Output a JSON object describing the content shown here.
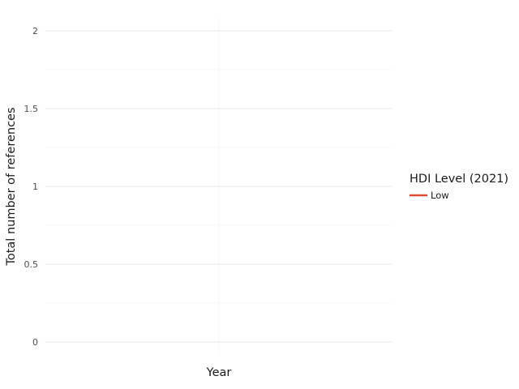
{
  "chart_data": {
    "type": "line",
    "xlabel": "Year",
    "ylabel": "Total number of references",
    "ylim": [
      0,
      2
    ],
    "y_ticks": [
      0,
      0.5,
      1,
      1.5,
      2
    ],
    "y_tick_labels": [
      "0",
      "0.5",
      "1",
      "1.5",
      "2"
    ],
    "x_ticks": [],
    "grid": true,
    "legend": {
      "title": "HDI Level (2021)",
      "placement": "right",
      "entries": [
        {
          "label": "Low",
          "color": "#e24a33"
        }
      ]
    },
    "series": [
      {
        "name": "Low",
        "color": "#e24a33",
        "x": [],
        "y": []
      }
    ]
  }
}
